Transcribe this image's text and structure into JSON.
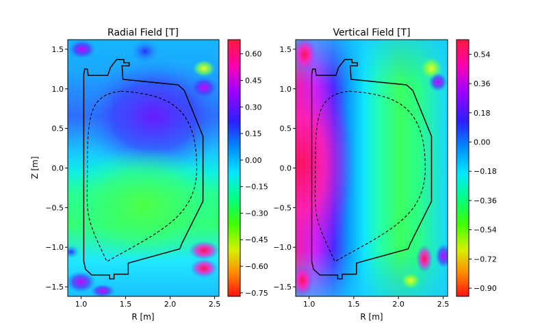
{
  "figure": {
    "type": "contour-map-pair"
  },
  "chart_data": [
    {
      "type": "heatmap",
      "title": "Radial Field [T]",
      "xlabel": "R [m]",
      "ylabel": "Z [m]",
      "xlim": [
        0.85,
        2.55
      ],
      "ylim": [
        -1.62,
        1.62
      ],
      "xticks": [
        1.0,
        1.5,
        2.0,
        2.5
      ],
      "xtick_labels": [
        "1.0",
        "1.5",
        "2.0",
        "2.5"
      ],
      "yticks": [
        1.5,
        1.0,
        0.5,
        0.0,
        -0.5,
        -1.0,
        -1.5
      ],
      "ytick_labels": [
        "1.5",
        "1.0",
        "0.5",
        "0.0",
        "−0.5",
        "−1.0",
        "−1.5"
      ],
      "colorbar": {
        "min": -0.77,
        "max": 0.68,
        "ticks": [
          0.6,
          0.45,
          0.3,
          0.15,
          0.0,
          -0.15,
          -0.3,
          -0.45,
          -0.6,
          -0.75
        ],
        "tick_labels": [
          "0.60",
          "0.45",
          "0.30",
          "0.15",
          "0.00",
          "−0.15",
          "−0.30",
          "−0.45",
          "−0.60",
          "−0.75"
        ]
      }
    },
    {
      "type": "heatmap",
      "title": "Vertical Field [T]",
      "xlabel": "R [m]",
      "ylabel": "",
      "xlim": [
        0.85,
        2.55
      ],
      "ylim": [
        -1.62,
        1.62
      ],
      "xticks": [
        1.0,
        1.5,
        2.0,
        2.5
      ],
      "xtick_labels": [
        "1.0",
        "1.5",
        "2.0",
        "2.5"
      ],
      "yticks": [
        1.5,
        1.0,
        0.5,
        0.0,
        -0.5,
        -1.0,
        -1.5
      ],
      "ytick_labels": [
        "1.5",
        "1.0",
        "0.5",
        "0.0",
        "−0.5",
        "−1.0",
        "−1.5"
      ],
      "colorbar": {
        "min": -0.95,
        "max": 0.63,
        "ticks": [
          0.54,
          0.36,
          0.18,
          0.0,
          -0.18,
          -0.36,
          -0.54,
          -0.72,
          -0.9
        ],
        "tick_labels": [
          "0.54",
          "0.36",
          "0.18",
          "0.00",
          "−0.18",
          "−0.36",
          "−0.54",
          "−0.72",
          "−0.90"
        ]
      }
    }
  ],
  "wall_outline_RZ": [
    [
      1.03,
      1.18
    ],
    [
      1.04,
      1.25
    ],
    [
      1.07,
      1.25
    ],
    [
      1.08,
      1.17
    ],
    [
      1.3,
      1.17
    ],
    [
      1.33,
      1.27
    ],
    [
      1.4,
      1.37
    ],
    [
      1.48,
      1.37
    ],
    [
      1.48,
      1.33
    ],
    [
      1.54,
      1.33
    ],
    [
      1.54,
      1.29
    ],
    [
      1.46,
      1.29
    ],
    [
      1.47,
      1.12
    ],
    [
      2.09,
      1.05
    ],
    [
      2.16,
      0.98
    ],
    [
      2.37,
      0.4
    ],
    [
      2.37,
      -0.42
    ],
    [
      2.13,
      -0.96
    ],
    [
      2.11,
      -1.02
    ],
    [
      1.53,
      -1.2
    ],
    [
      1.53,
      -1.34
    ],
    [
      1.37,
      -1.34
    ],
    [
      1.37,
      -1.4
    ],
    [
      1.32,
      -1.4
    ],
    [
      1.32,
      -1.35
    ],
    [
      1.12,
      -1.35
    ],
    [
      1.05,
      -1.28
    ],
    [
      1.03,
      -1.18
    ],
    [
      1.03,
      1.18
    ]
  ],
  "dashed_boundary_RZ": {
    "top": [
      1.45,
      0.97
    ],
    "bottom": [
      1.29,
      -1.18
    ],
    "outer_midplane": [
      2.3,
      0.0
    ],
    "inner_midplane": [
      1.07,
      0.0
    ]
  },
  "colors": {
    "axis": "#000000",
    "background": "#ffffff"
  }
}
